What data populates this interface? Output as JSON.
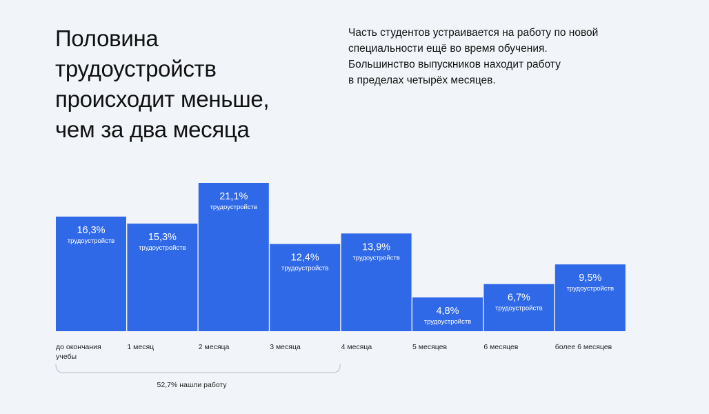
{
  "title_lines": [
    "Половина",
    "трудоустройств",
    "происходит меньше,",
    "чем за два месяца"
  ],
  "subtitle_lines": [
    "Часть студентов устраивается на работу по новой",
    "специальности ещё во время обучения.",
    "Большинство выпускников находит работу",
    "в пределах четырёх месяцев."
  ],
  "chart_data": {
    "type": "bar",
    "categories": [
      [
        "до окончания",
        "учебы"
      ],
      [
        "1 месяц"
      ],
      [
        "2 месяца"
      ],
      [
        "3 месяца"
      ],
      [
        "4 месяца"
      ],
      [
        "5 месяцев"
      ],
      [
        "6 месяцев"
      ],
      [
        "более  6 месяцев"
      ]
    ],
    "values": [
      16.3,
      15.3,
      21.1,
      12.4,
      13.9,
      4.8,
      6.7,
      9.5
    ],
    "value_labels": [
      "16,3%",
      "15,3%",
      "21,1%",
      "12,4%",
      "13,9%",
      "4,8%",
      "6,7%",
      "9,5%"
    ],
    "unit_label": "трудоустройств",
    "bar_color": "#3069e8",
    "annotation": {
      "text": "52,7% нашли работу",
      "covers_categories": [
        0,
        3
      ]
    }
  }
}
